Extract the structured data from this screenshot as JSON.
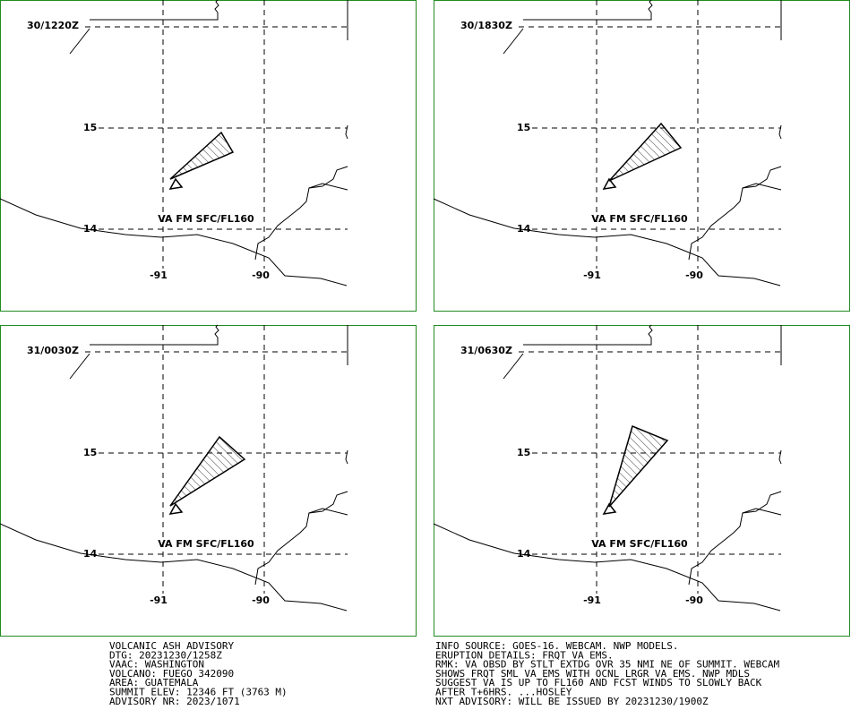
{
  "panels": [
    {
      "time": "30/1220Z",
      "lat_labels": [
        "15",
        "14"
      ],
      "lon_labels": [
        "-91",
        "-90"
      ],
      "ash_label": "VA FM SFC/FL160"
    },
    {
      "time": "30/1830Z",
      "lat_labels": [
        "15",
        "14"
      ],
      "lon_labels": [
        "-91",
        "-90"
      ],
      "ash_label": "VA FM SFC/FL160"
    },
    {
      "time": "31/0030Z",
      "lat_labels": [
        "15",
        "14"
      ],
      "lon_labels": [
        "-91",
        "-90"
      ],
      "ash_label": "VA FM SFC/FL160"
    },
    {
      "time": "31/0630Z",
      "lat_labels": [
        "15",
        "14"
      ],
      "lon_labels": [
        "-91",
        "-90"
      ],
      "ash_label": "VA FM SFC/FL160"
    }
  ],
  "advisory_left": [
    "VOLCANIC ASH ADVISORY",
    "DTG: 20231230/1258Z",
    "VAAC: WASHINGTON",
    "VOLCANO: FUEGO 342090",
    "AREA: GUATEMALA",
    "SUMMIT ELEV: 12346 FT (3763 M)",
    "ADVISORY NR: 2023/1071"
  ],
  "advisory_right": [
    "INFO SOURCE: GOES-16. WEBCAM. NWP MODELS.",
    "ERUPTION DETAILS: FRQT VA EMS.",
    "RMK: VA OBSD BY STLT EXTDG OVR 35 NMI NE OF SUMMIT. WEBCAM",
    "SHOWS FRQT SML VA EMS WITH OCNL LRGR VA EMS. NWP MDLS",
    "SUGGEST VA IS UP TO FL160 AND FCST WINDS TO SLOWLY BACK",
    "AFTER T+6HRS. ...HOSLEY",
    "NXT ADVISORY: WILL BE ISSUED BY 20231230/1900Z"
  ]
}
